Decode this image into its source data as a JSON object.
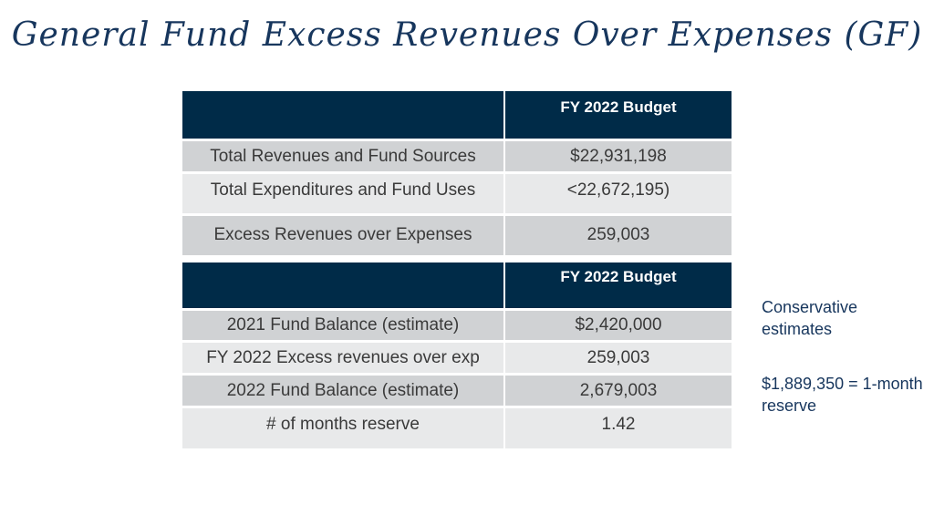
{
  "title": "General Fund Excess Revenues Over Expenses (GF)",
  "table1": {
    "header": [
      "",
      "FY 2022 Budget"
    ],
    "rows": [
      [
        "Total Revenues and Fund Sources",
        "$22,931,198"
      ],
      [
        "Total Expenditures and Fund Uses",
        "<22,672,195)"
      ],
      [
        "Excess Revenues over Expenses",
        "259,003"
      ]
    ]
  },
  "table2": {
    "header": [
      "",
      "FY 2022 Budget"
    ],
    "rows": [
      [
        "2021 Fund Balance (estimate)",
        "$2,420,000"
      ],
      [
        "FY 2022 Excess revenues over exp",
        "259,003"
      ],
      [
        "2022 Fund Balance (estimate)",
        "2,679,003"
      ],
      [
        "# of months reserve",
        "1.42"
      ]
    ]
  },
  "notes": {
    "note1": "Conservative estimates",
    "note2": "$1,889,350 = 1-month reserve"
  }
}
